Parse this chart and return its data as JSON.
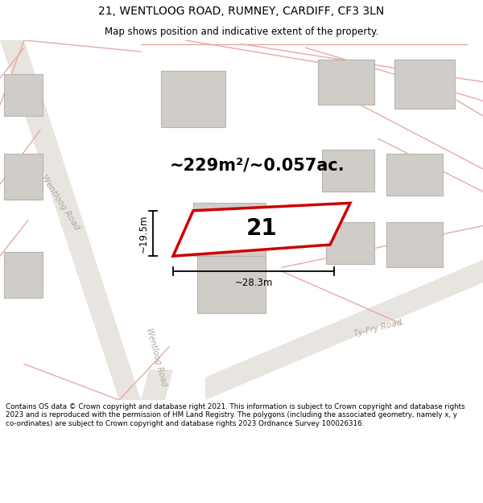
{
  "title_line1": "21, WENTLOOG ROAD, RUMNEY, CARDIFF, CF3 3LN",
  "title_line2": "Map shows position and indicative extent of the property.",
  "area_text": "~229m²/~0.057ac.",
  "plot_number": "21",
  "dim_height": "~19.5m",
  "dim_width": "~28.3m",
  "footer": "Contains OS data © Crown copyright and database right 2021. This information is subject to Crown copyright and database rights 2023 and is reproduced with the permission of HM Land Registry. The polygons (including the associated geometry, namely x, y co-ordinates) are subject to Crown copyright and database rights 2023 Ordnance Survey 100026316.",
  "bg_color": "#ffffff",
  "map_bg": "#f7f4f0",
  "road_strip_color": "#e8e4df",
  "pink_line_color": "#e8a8a8",
  "building_face": "#d0ccc8",
  "building_edge": "#b8b4b0",
  "plot_outline_color": "#cc0000",
  "road_label_color": "#b0a8a0",
  "dim_color": "#000000",
  "title_fontsize": 10,
  "subtitle_fontsize": 8.5,
  "area_fontsize": 15,
  "plot_num_fontsize": 20,
  "dim_fontsize": 8.5,
  "footer_fontsize": 6.3
}
